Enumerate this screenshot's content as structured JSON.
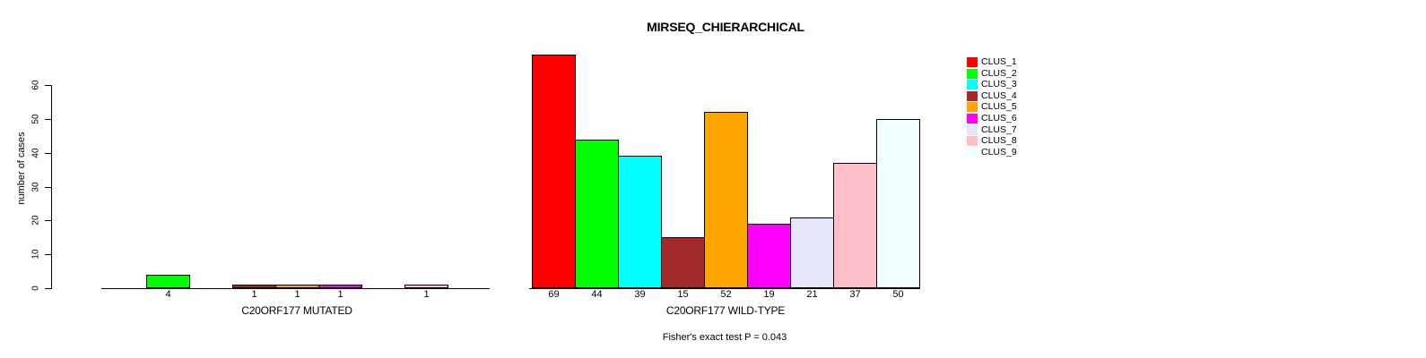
{
  "title": "MIRSEQ_CHIERARCHICAL",
  "y_axis": {
    "label": "number of cases",
    "ticks": [
      0,
      10,
      20,
      30,
      40,
      50,
      60
    ]
  },
  "panels": [
    {
      "xlabel": "C20ORF177 MUTATED"
    },
    {
      "xlabel": "C20ORF177 WILD-TYPE"
    }
  ],
  "footnote": "Fisher's exact test P = 0.043",
  "chart_data": {
    "type": "bar",
    "title": "MIRSEQ_CHIERARCHICAL",
    "ylabel": "number of cases",
    "ylim": [
      0,
      60
    ],
    "yticks": [
      0,
      10,
      20,
      30,
      40,
      50,
      60
    ],
    "grid": false,
    "legend_position": "right",
    "categories": [
      "CLUS_1",
      "CLUS_2",
      "CLUS_3",
      "CLUS_4",
      "CLUS_5",
      "CLUS_6",
      "CLUS_7",
      "CLUS_8",
      "CLUS_9"
    ],
    "series": [
      {
        "name": "C20ORF177 MUTATED",
        "values": [
          0,
          4,
          0,
          1,
          1,
          1,
          0,
          1,
          0
        ]
      },
      {
        "name": "C20ORF177 WILD-TYPE",
        "values": [
          69,
          44,
          39,
          15,
          52,
          19,
          21,
          37,
          50
        ]
      }
    ],
    "colors": [
      "#FF0000",
      "#00FF00",
      "#00FFFF",
      "#A52A2A",
      "#FFA500",
      "#FF00FF",
      "#E6E6FA",
      "#FFC0CB",
      "#F0FFFF"
    ],
    "value_labels": "shown under each nonzero bar",
    "annotation": "Fisher's exact test P = 0.043"
  }
}
